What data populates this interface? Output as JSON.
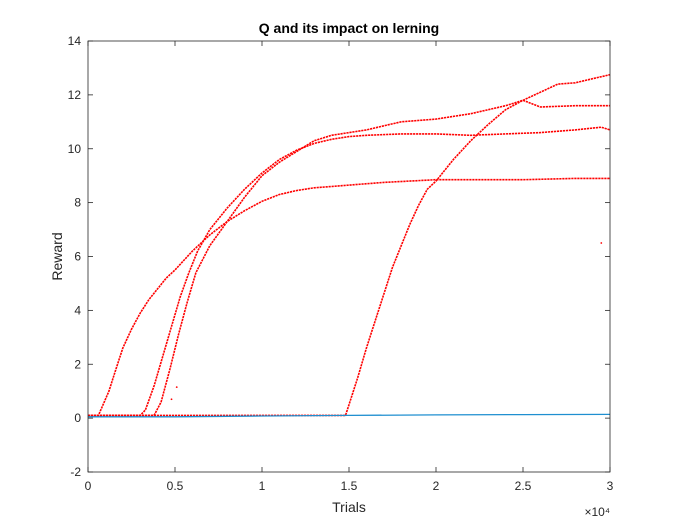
{
  "chart_data": {
    "type": "line",
    "title": "Q and its impact on lerning",
    "xlabel": "Trials",
    "ylabel": "Reward",
    "xlim": [
      0,
      30000
    ],
    "ylim": [
      -2,
      14
    ],
    "x_ticks": [
      0,
      5000,
      10000,
      15000,
      20000,
      25000,
      30000
    ],
    "x_tick_labels": [
      "0",
      "0.5",
      "1",
      "1.5",
      "2",
      "2.5",
      "3"
    ],
    "x_exponent_label": "×10⁴",
    "y_ticks": [
      -2,
      0,
      2,
      4,
      6,
      8,
      10,
      12,
      14
    ],
    "y_tick_labels": [
      "-2",
      "0",
      "2",
      "4",
      "6",
      "8",
      "10",
      "12",
      "14"
    ],
    "grid": false,
    "legend": "none",
    "series": [
      {
        "color": "#ff0000",
        "x": [
          0,
          600,
          800,
          1200,
          1600,
          2000,
          2500,
          3000,
          3500,
          4000,
          4500,
          5000,
          5500,
          6000,
          7000,
          8000,
          9000,
          10000,
          11000,
          12000,
          13000,
          14000,
          15000,
          17000,
          20000,
          25000,
          28000,
          30000
        ],
        "y": [
          0.1,
          0.1,
          0.4,
          1.0,
          1.8,
          2.6,
          3.3,
          3.9,
          4.4,
          4.8,
          5.2,
          5.5,
          5.85,
          6.2,
          6.8,
          7.3,
          7.7,
          8.05,
          8.3,
          8.45,
          8.55,
          8.6,
          8.65,
          8.75,
          8.85,
          8.85,
          8.9,
          8.9
        ]
      },
      {
        "color": "#ff0000",
        "x": [
          0,
          3000,
          3300,
          3800,
          4300,
          4800,
          5300,
          5800,
          6300,
          7000,
          8000,
          9000,
          10000,
          11000,
          12000,
          13000,
          14000,
          15000,
          16000,
          18000,
          20000,
          22000,
          24000,
          26000,
          28000,
          29500,
          30000
        ],
        "y": [
          0.1,
          0.1,
          0.3,
          1.2,
          2.3,
          3.4,
          4.5,
          5.4,
          6.2,
          7.0,
          7.8,
          8.5,
          9.1,
          9.6,
          9.95,
          10.2,
          10.35,
          10.45,
          10.5,
          10.55,
          10.55,
          10.5,
          10.55,
          10.6,
          10.7,
          10.8,
          10.7
        ]
      },
      {
        "color": "#ff0000",
        "x": [
          0,
          3800,
          4200,
          4700,
          5200,
          5700,
          6200,
          7000,
          8000,
          9000,
          10000,
          11000,
          12000,
          13000,
          14000,
          15000,
          16000,
          18000,
          20000,
          22000,
          24000,
          25000,
          26000,
          28000,
          30000
        ],
        "y": [
          0.1,
          0.1,
          0.6,
          1.8,
          3.1,
          4.3,
          5.4,
          6.4,
          7.3,
          8.2,
          9.0,
          9.5,
          9.9,
          10.3,
          10.5,
          10.6,
          10.7,
          11.0,
          11.1,
          11.3,
          11.6,
          11.8,
          11.55,
          11.6,
          11.6
        ]
      },
      {
        "color": "#ff0000",
        "x": [
          0,
          14800,
          15000,
          15500,
          16000,
          16500,
          17000,
          17500,
          18000,
          18500,
          19000,
          19500,
          20000,
          21000,
          22000,
          23000,
          24000,
          25000,
          26000,
          27000,
          28000,
          29000,
          30000
        ],
        "y": [
          0.1,
          0.1,
          0.5,
          1.5,
          2.6,
          3.6,
          4.6,
          5.6,
          6.4,
          7.2,
          7.9,
          8.5,
          8.8,
          9.6,
          10.3,
          10.9,
          11.45,
          11.8,
          12.1,
          12.4,
          12.45,
          12.6,
          12.75
        ]
      },
      {
        "color": "#1f8fd0",
        "x": [
          0,
          5000,
          10000,
          15000,
          20000,
          25000,
          30000
        ],
        "y": [
          0.05,
          0.05,
          0.08,
          0.1,
          0.12,
          0.13,
          0.14
        ]
      }
    ],
    "outliers": [
      {
        "x": 5100,
        "y": 1.15
      },
      {
        "x": 4800,
        "y": 0.7
      },
      {
        "x": 29500,
        "y": 6.5
      }
    ]
  }
}
